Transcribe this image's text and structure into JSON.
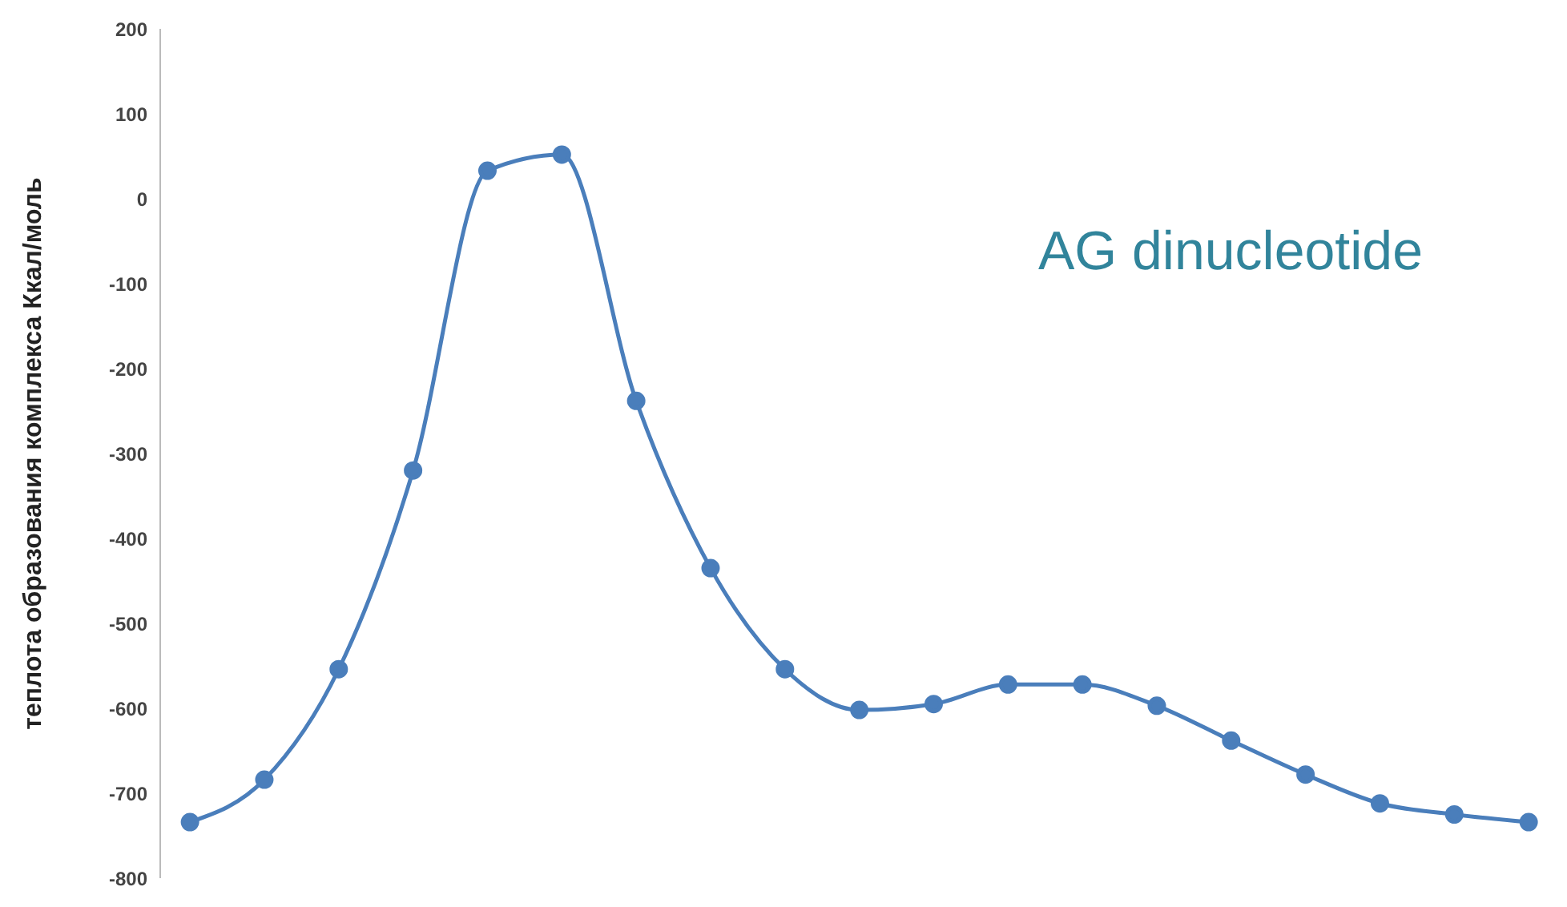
{
  "chart_data": {
    "type": "line",
    "ylabel": "теплота образования комплекса Ккал/моль",
    "annotations": [
      "AG dinucleotide"
    ],
    "categories": [
      null,
      null,
      null,
      null,
      null,
      null,
      null,
      null,
      null,
      null,
      null,
      null,
      null,
      null,
      null,
      null,
      null,
      null,
      null
    ],
    "series": [
      {
        "color": "#4a7ebb",
        "values": [
          -734,
          -684,
          -554,
          -320,
          33,
          52,
          -238,
          -435,
          -554,
          -602,
          -595,
          -572,
          -572,
          -597,
          -638,
          -678,
          -712,
          -725,
          -734
        ]
      }
    ],
    "ylim": [
      -800,
      200
    ],
    "yticks": [
      -800,
      -700,
      -600,
      -500,
      -400,
      -300,
      -200,
      -100,
      0,
      100,
      200
    ],
    "grid": false,
    "legend": false,
    "marker": "circle",
    "line_style": "solid",
    "tick_labels": "y"
  }
}
